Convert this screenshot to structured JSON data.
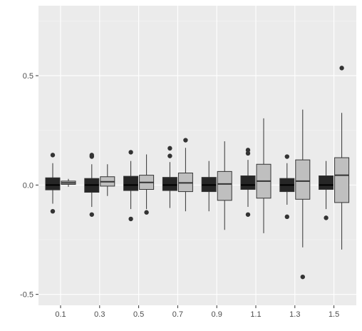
{
  "chart_data": {
    "type": "box",
    "title": "",
    "xlabel": "",
    "ylabel": "",
    "ylim": [
      -0.55,
      0.82
    ],
    "y_ticks": [
      -0.5,
      0.0,
      0.5
    ],
    "y_tick_labels": [
      "-0.5",
      "0.0",
      "0.5"
    ],
    "categories": [
      "0.1",
      "0.3",
      "0.5",
      "0.7",
      "0.9",
      "1.1",
      "1.3",
      "1.5"
    ],
    "grid": true,
    "legend": "none",
    "series": [
      {
        "fill": "#262626",
        "boxes": [
          {
            "x": "0.1",
            "whisker_low": -0.085,
            "q1": -0.022,
            "median": 0.0,
            "q3": 0.033,
            "whisker_high": 0.1,
            "outliers": [
              0.137,
              -0.12
            ]
          },
          {
            "x": "0.3",
            "whisker_low": -0.1,
            "q1": -0.033,
            "median": 0.0,
            "q3": 0.03,
            "whisker_high": 0.095,
            "outliers": [
              0.137,
              0.13,
              -0.135
            ]
          },
          {
            "x": "0.5",
            "whisker_low": -0.11,
            "q1": -0.025,
            "median": 0.0,
            "q3": 0.04,
            "whisker_high": 0.11,
            "outliers": [
              0.15,
              -0.155
            ]
          },
          {
            "x": "0.7",
            "whisker_low": -0.105,
            "q1": -0.025,
            "median": 0.0,
            "q3": 0.035,
            "whisker_high": 0.105,
            "outliers": [
              0.168,
              0.133
            ]
          },
          {
            "x": "0.9",
            "whisker_low": -0.12,
            "q1": -0.03,
            "median": 0.0,
            "q3": 0.035,
            "whisker_high": 0.11,
            "outliers": []
          },
          {
            "x": "1.1",
            "whisker_low": -0.1,
            "q1": -0.02,
            "median": 0.0,
            "q3": 0.042,
            "whisker_high": 0.115,
            "outliers": [
              0.16,
              0.145,
              -0.135
            ]
          },
          {
            "x": "1.3",
            "whisker_low": -0.09,
            "q1": -0.03,
            "median": 0.0,
            "q3": 0.03,
            "whisker_high": 0.1,
            "outliers": [
              0.13,
              -0.145
            ]
          },
          {
            "x": "1.5",
            "whisker_low": -0.11,
            "q1": -0.02,
            "median": 0.0,
            "q3": 0.042,
            "whisker_high": 0.11,
            "outliers": [
              -0.15
            ]
          }
        ]
      },
      {
        "fill": "#bfbfbf",
        "boxes": [
          {
            "x": "0.1",
            "whisker_low": -0.008,
            "q1": 0.003,
            "median": 0.01,
            "q3": 0.018,
            "whisker_high": 0.028,
            "outliers": []
          },
          {
            "x": "0.3",
            "whisker_low": -0.05,
            "q1": -0.005,
            "median": 0.015,
            "q3": 0.038,
            "whisker_high": 0.095,
            "outliers": []
          },
          {
            "x": "0.5",
            "whisker_low": -0.11,
            "q1": -0.02,
            "median": 0.012,
            "q3": 0.045,
            "whisker_high": 0.14,
            "outliers": [
              -0.125
            ]
          },
          {
            "x": "0.7",
            "whisker_low": -0.12,
            "q1": -0.03,
            "median": 0.01,
            "q3": 0.055,
            "whisker_high": 0.17,
            "outliers": [
              0.205
            ]
          },
          {
            "x": "0.9",
            "whisker_low": -0.205,
            "q1": -0.07,
            "median": 0.005,
            "q3": 0.062,
            "whisker_high": 0.2,
            "outliers": []
          },
          {
            "x": "1.1",
            "whisker_low": -0.22,
            "q1": -0.06,
            "median": 0.018,
            "q3": 0.095,
            "whisker_high": 0.305,
            "outliers": []
          },
          {
            "x": "1.3",
            "whisker_low": -0.285,
            "q1": -0.065,
            "median": 0.018,
            "q3": 0.115,
            "whisker_high": 0.345,
            "outliers": [
              -0.42
            ]
          },
          {
            "x": "1.5",
            "whisker_low": -0.295,
            "q1": -0.08,
            "median": 0.045,
            "q3": 0.125,
            "whisker_high": 0.33,
            "outliers": [
              0.535
            ]
          }
        ]
      }
    ]
  }
}
